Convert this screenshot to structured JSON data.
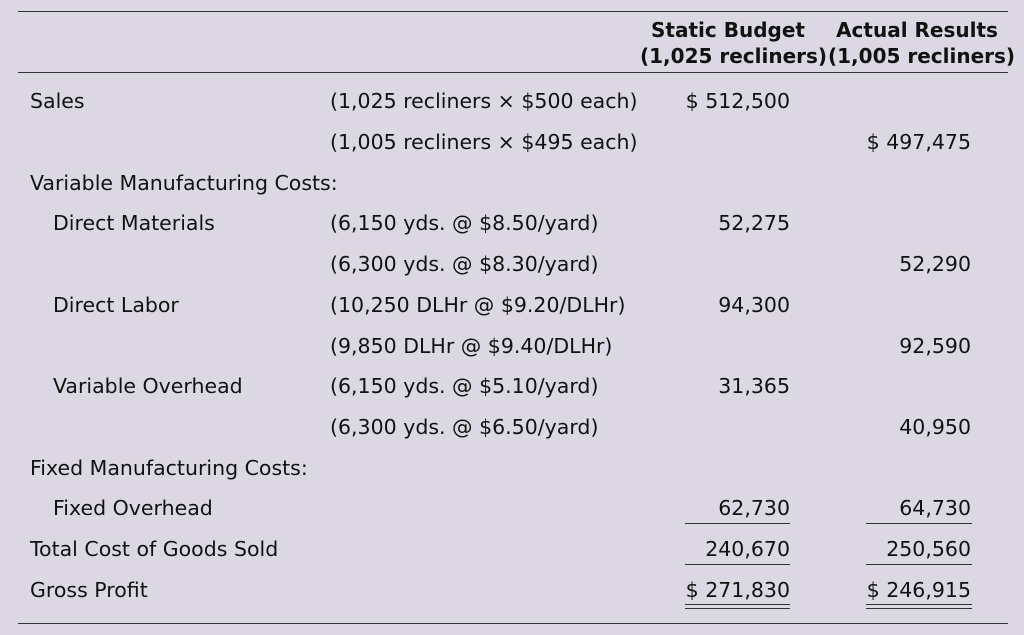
{
  "header": {
    "static_budget": {
      "line1": "Static Budget",
      "line2": "(1,025 recliners)"
    },
    "actual_results": {
      "line1": "Actual Results",
      "line2": "(1,005 recliners)"
    }
  },
  "rows": [
    {
      "label": "Sales",
      "desc": "(1,025 recliners × $500 each)",
      "static": "$ 512,500",
      "actual": ""
    },
    {
      "label": "",
      "desc": "(1,005 recliners × $495 each)",
      "static": "",
      "actual": "$ 497,475"
    },
    {
      "label": "Variable Manufacturing Costs:",
      "desc": "",
      "static": "",
      "actual": ""
    },
    {
      "label": "Direct Materials",
      "desc": "(6,150 yds. @ $8.50/yard)",
      "static": "52,275",
      "actual": ""
    },
    {
      "label": "",
      "desc": "(6,300 yds. @ $8.30/yard)",
      "static": "",
      "actual": "52,290"
    },
    {
      "label": "Direct Labor",
      "desc": "(10,250 DLHr @ $9.20/DLHr)",
      "static": "94,300",
      "actual": ""
    },
    {
      "label": "",
      "desc": "(9,850 DLHr @ $9.40/DLHr)",
      "static": "",
      "actual": "92,590"
    },
    {
      "label": "Variable Overhead",
      "desc": "(6,150 yds. @ $5.10/yard)",
      "static": "31,365",
      "actual": ""
    },
    {
      "label": "",
      "desc": "(6,300 yds. @ $6.50/yard)",
      "static": "",
      "actual": "40,950"
    },
    {
      "label": "Fixed Manufacturing Costs:",
      "desc": "",
      "static": "",
      "actual": ""
    },
    {
      "label": "Fixed Overhead",
      "desc": "",
      "static": "62,730",
      "actual": "64,730"
    },
    {
      "label": "Total Cost of Goods Sold",
      "desc": "",
      "static": "240,670",
      "actual": "250,560"
    },
    {
      "label": "Gross Profit",
      "desc": "",
      "static": "$ 271,830",
      "actual": "$ 246,915"
    }
  ]
}
